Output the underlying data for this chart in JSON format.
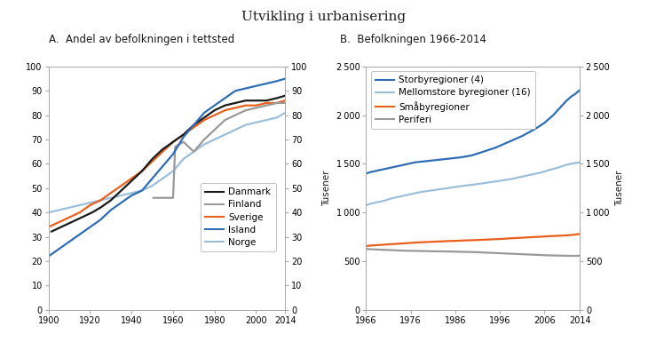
{
  "title": "Utvikling i urbanisering",
  "panel_a_title": "A.  Andel av befolkningen i tettsted",
  "panel_b_title": "B.  Befolkningen 1966-2014",
  "panel_a": {
    "ylim": [
      0,
      100
    ],
    "yticks": [
      0,
      10,
      20,
      30,
      40,
      50,
      60,
      70,
      80,
      90,
      100
    ],
    "xlim": [
      1900,
      2014
    ],
    "xticks": [
      1900,
      1920,
      1940,
      1960,
      1980,
      2000,
      2014
    ],
    "series": {
      "Danmark": {
        "color": "#1a1a1a",
        "linewidth": 1.6,
        "x": [
          1901,
          1906,
          1911,
          1916,
          1921,
          1925,
          1930,
          1935,
          1940,
          1945,
          1950,
          1955,
          1960,
          1965,
          1970,
          1975,
          1980,
          1985,
          1990,
          1995,
          2000,
          2005,
          2010,
          2014
        ],
        "y": [
          32,
          34,
          36,
          38,
          40,
          42,
          45,
          49,
          53,
          57,
          62,
          66,
          69,
          72,
          76,
          79,
          82,
          84,
          85,
          86,
          86,
          86,
          87,
          88
        ]
      },
      "Finland": {
        "color": "#999999",
        "linewidth": 1.6,
        "x": [
          1950,
          1951,
          1960,
          1961,
          1965,
          1970,
          1975,
          1980,
          1985,
          1990,
          1995,
          2000,
          2005,
          2010,
          2014
        ],
        "y": [
          46,
          46,
          46,
          67,
          69,
          65,
          70,
          74,
          78,
          80,
          82,
          83,
          84,
          85,
          85
        ]
      },
      "Sverige": {
        "color": "#e8601c",
        "linewidth": 1.6,
        "x": [
          1900,
          1905,
          1910,
          1915,
          1920,
          1925,
          1930,
          1935,
          1940,
          1945,
          1950,
          1955,
          1960,
          1965,
          1970,
          1975,
          1980,
          1985,
          1990,
          1995,
          2000,
          2005,
          2010,
          2014
        ],
        "y": [
          34,
          36,
          38,
          40,
          43,
          45,
          48,
          51,
          54,
          57,
          61,
          65,
          69,
          72,
          75,
          78,
          80,
          82,
          83,
          84,
          84,
          85,
          85,
          86
        ]
      },
      "Island": {
        "color": "#2e6db4",
        "linewidth": 1.6,
        "x": [
          1900,
          1905,
          1910,
          1915,
          1920,
          1925,
          1930,
          1935,
          1940,
          1945,
          1950,
          1955,
          1960,
          1965,
          1970,
          1975,
          1980,
          1985,
          1990,
          1995,
          2000,
          2005,
          2010,
          2014
        ],
        "y": [
          22,
          25,
          28,
          31,
          34,
          37,
          41,
          44,
          47,
          49,
          54,
          59,
          64,
          71,
          76,
          81,
          84,
          87,
          90,
          91,
          92,
          93,
          94,
          95
        ]
      },
      "Norge": {
        "color": "#9bbfda",
        "linewidth": 1.6,
        "x": [
          1900,
          1905,
          1910,
          1915,
          1920,
          1925,
          1930,
          1935,
          1940,
          1945,
          1950,
          1955,
          1960,
          1965,
          1970,
          1975,
          1980,
          1985,
          1990,
          1995,
          2000,
          2005,
          2010,
          2014
        ],
        "y": [
          40,
          41,
          42,
          43,
          44,
          45,
          46,
          47,
          48,
          49,
          51,
          54,
          57,
          62,
          65,
          68,
          70,
          72,
          74,
          76,
          77,
          78,
          79,
          81
        ]
      }
    }
  },
  "panel_b": {
    "ylabel_left": "Tusener",
    "ylabel_right": "Tusener",
    "ylim": [
      0,
      2500
    ],
    "yticks": [
      0,
      500,
      1000,
      1500,
      2000,
      2500
    ],
    "xlim": [
      1966,
      2014
    ],
    "xticks": [
      1966,
      1976,
      1986,
      1996,
      2006,
      2014
    ],
    "series": {
      "Storbyregioner (4)": {
        "color": "#2e6db4",
        "linewidth": 1.6,
        "x": [
          1966,
          1967,
          1968,
          1969,
          1970,
          1971,
          1972,
          1973,
          1974,
          1975,
          1976,
          1977,
          1978,
          1979,
          1980,
          1981,
          1982,
          1983,
          1984,
          1985,
          1986,
          1987,
          1988,
          1989,
          1990,
          1991,
          1992,
          1993,
          1994,
          1995,
          1996,
          1997,
          1998,
          1999,
          2000,
          2001,
          2002,
          2003,
          2004,
          2005,
          2006,
          2007,
          2008,
          2009,
          2010,
          2011,
          2012,
          2013,
          2014
        ],
        "y": [
          1400,
          1415,
          1425,
          1435,
          1445,
          1455,
          1465,
          1475,
          1485,
          1495,
          1505,
          1515,
          1520,
          1525,
          1530,
          1535,
          1540,
          1545,
          1550,
          1555,
          1560,
          1565,
          1572,
          1580,
          1590,
          1605,
          1620,
          1635,
          1650,
          1665,
          1685,
          1705,
          1725,
          1745,
          1765,
          1785,
          1810,
          1835,
          1860,
          1890,
          1920,
          1960,
          2000,
          2050,
          2100,
          2150,
          2190,
          2220,
          2260
        ]
      },
      "Mellomstore byregioner (16)": {
        "color": "#9bbfda",
        "linewidth": 1.6,
        "x": [
          1966,
          1967,
          1968,
          1969,
          1970,
          1971,
          1972,
          1973,
          1974,
          1975,
          1976,
          1977,
          1978,
          1979,
          1980,
          1981,
          1982,
          1983,
          1984,
          1985,
          1986,
          1987,
          1988,
          1989,
          1990,
          1991,
          1992,
          1993,
          1994,
          1995,
          1996,
          1997,
          1998,
          1999,
          2000,
          2001,
          2002,
          2003,
          2004,
          2005,
          2006,
          2007,
          2008,
          2009,
          2010,
          2011,
          2012,
          2013,
          2014
        ],
        "y": [
          1075,
          1090,
          1100,
          1110,
          1120,
          1135,
          1148,
          1158,
          1168,
          1178,
          1188,
          1198,
          1208,
          1215,
          1222,
          1228,
          1235,
          1242,
          1248,
          1255,
          1262,
          1268,
          1275,
          1280,
          1285,
          1292,
          1298,
          1305,
          1312,
          1318,
          1325,
          1332,
          1340,
          1348,
          1358,
          1368,
          1378,
          1388,
          1398,
          1408,
          1420,
          1435,
          1448,
          1460,
          1475,
          1490,
          1500,
          1508,
          1515
        ]
      },
      "Småbyregioner": {
        "color": "#e8601c",
        "linewidth": 1.6,
        "x": [
          1966,
          1967,
          1968,
          1969,
          1970,
          1971,
          1972,
          1973,
          1974,
          1975,
          1976,
          1977,
          1978,
          1979,
          1980,
          1981,
          1982,
          1983,
          1984,
          1985,
          1986,
          1987,
          1988,
          1989,
          1990,
          1991,
          1992,
          1993,
          1994,
          1995,
          1996,
          1997,
          1998,
          1999,
          2000,
          2001,
          2002,
          2003,
          2004,
          2005,
          2006,
          2007,
          2008,
          2009,
          2010,
          2011,
          2012,
          2013,
          2014
        ],
        "y": [
          655,
          660,
          663,
          666,
          669,
          672,
          675,
          678,
          681,
          684,
          687,
          690,
          693,
          695,
          697,
          699,
          701,
          703,
          705,
          707,
          708,
          710,
          712,
          714,
          715,
          717,
          719,
          721,
          723,
          725,
          727,
          730,
          733,
          736,
          738,
          740,
          743,
          746,
          748,
          750,
          753,
          756,
          758,
          760,
          762,
          765,
          768,
          773,
          780
        ]
      },
      "Periferi": {
        "color": "#999999",
        "linewidth": 1.6,
        "x": [
          1966,
          1967,
          1968,
          1969,
          1970,
          1971,
          1972,
          1973,
          1974,
          1975,
          1976,
          1977,
          1978,
          1979,
          1980,
          1981,
          1982,
          1983,
          1984,
          1985,
          1986,
          1987,
          1988,
          1989,
          1990,
          1991,
          1992,
          1993,
          1994,
          1995,
          1996,
          1997,
          1998,
          1999,
          2000,
          2001,
          2002,
          2003,
          2004,
          2005,
          2006,
          2007,
          2008,
          2009,
          2010,
          2011,
          2012,
          2013,
          2014
        ],
        "y": [
          625,
          622,
          620,
          618,
          616,
          614,
          612,
          610,
          608,
          607,
          606,
          605,
          604,
          603,
          602,
          601,
          600,
          600,
          599,
          598,
          597,
          596,
          595,
          594,
          593,
          591,
          589,
          587,
          585,
          583,
          581,
          579,
          577,
          575,
          573,
          571,
          569,
          567,
          565,
          563,
          561,
          559,
          558,
          557,
          556,
          555,
          554,
          554,
          555
        ]
      }
    }
  },
  "background_color": "#ffffff",
  "text_color": "#1a1a1a"
}
